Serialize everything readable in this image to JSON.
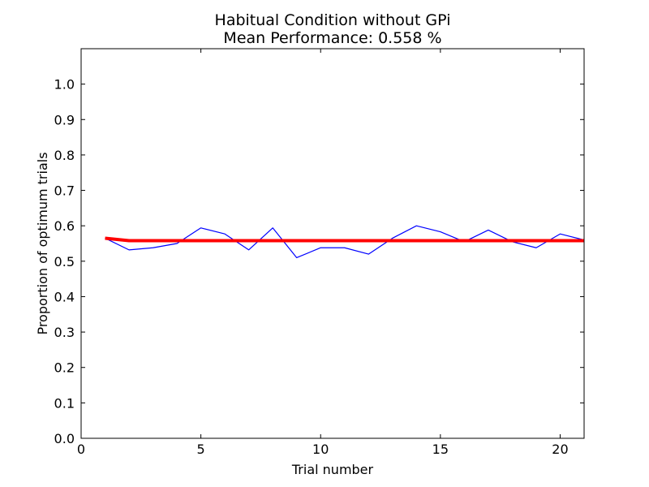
{
  "chart_data": {
    "type": "line",
    "title": "Habitual Condition without GPi",
    "subtitle": "Mean Performance: 0.558 %",
    "xlabel": "Trial number",
    "ylabel": "Proportion of optimum trials",
    "xlim": [
      0,
      21
    ],
    "ylim": [
      0.0,
      1.1
    ],
    "x_ticks": [
      "0",
      "5",
      "10",
      "15",
      "20"
    ],
    "y_ticks": [
      "0.0",
      "0.1",
      "0.2",
      "0.3",
      "0.4",
      "0.5",
      "0.6",
      "0.7",
      "0.8",
      "0.9",
      "1.0"
    ],
    "grid": false,
    "series": [
      {
        "color": "#0000ff",
        "x": [
          1,
          2,
          3,
          4,
          5,
          6,
          7,
          8,
          9,
          10,
          11,
          12,
          13,
          14,
          15,
          16,
          17,
          18,
          19,
          20,
          21
        ],
        "values": [
          0.565,
          0.532,
          0.538,
          0.55,
          0.594,
          0.577,
          0.532,
          0.594,
          0.51,
          0.538,
          0.538,
          0.52,
          0.565,
          0.6,
          0.583,
          0.555,
          0.588,
          0.555,
          0.538,
          0.577,
          0.56
        ]
      },
      {
        "color": "#ff0000",
        "x": [
          1,
          2,
          3,
          4,
          5,
          6,
          7,
          8,
          9,
          10,
          11,
          12,
          13,
          14,
          15,
          16,
          17,
          18,
          19,
          20,
          21
        ],
        "values": [
          0.565,
          0.558,
          0.558,
          0.558,
          0.558,
          0.558,
          0.558,
          0.558,
          0.558,
          0.558,
          0.558,
          0.558,
          0.558,
          0.558,
          0.558,
          0.558,
          0.558,
          0.558,
          0.558,
          0.558,
          0.558
        ]
      }
    ]
  }
}
